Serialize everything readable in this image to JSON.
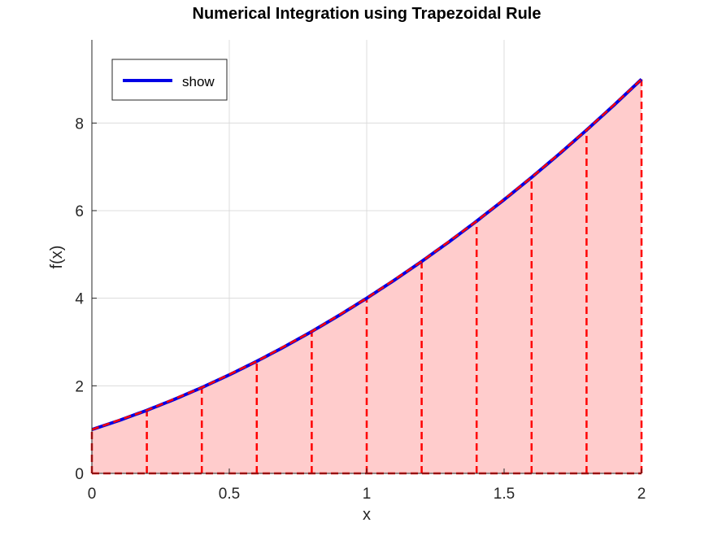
{
  "chart_data": {
    "type": "area",
    "title": "Numerical Integration using Trapezoidal Rule",
    "xlabel": "x",
    "ylabel": "f(x)",
    "xlim": [
      0,
      2
    ],
    "ylim": [
      0,
      9.9
    ],
    "grid": true,
    "legend_position": "top-left",
    "x_ticks": [
      0,
      0.5,
      1,
      1.5,
      2
    ],
    "x_tick_labels": [
      "0",
      "0.5",
      "1",
      "1.5",
      "2"
    ],
    "y_ticks": [
      0,
      2,
      4,
      6,
      8
    ],
    "y_tick_labels": [
      "0",
      "2",
      "4",
      "6",
      "8"
    ],
    "series": [
      {
        "name": "show",
        "kind": "line",
        "color": "#0000e6",
        "x": [
          0,
          0.1,
          0.2,
          0.3,
          0.4,
          0.5,
          0.6,
          0.7,
          0.8,
          0.9,
          1.0,
          1.1,
          1.2,
          1.3,
          1.4,
          1.5,
          1.6,
          1.7,
          1.8,
          1.9,
          2.0
        ],
        "y": [
          1,
          1.21,
          1.44,
          1.69,
          1.96,
          2.25,
          2.56,
          2.89,
          3.24,
          3.61,
          4,
          4.41,
          4.84,
          5.29,
          5.76,
          6.25,
          6.76,
          7.29,
          7.84,
          8.41,
          9
        ]
      },
      {
        "kind": "trapezoids",
        "color": "#ff0000",
        "fill": "#ffcccc",
        "x": [
          0,
          0.2,
          0.4,
          0.6,
          0.8,
          1.0,
          1.2,
          1.4,
          1.6,
          1.8,
          2.0
        ],
        "y": [
          1,
          1.44,
          1.96,
          2.56,
          3.24,
          4,
          4.84,
          5.76,
          6.76,
          7.84,
          9
        ]
      }
    ]
  }
}
